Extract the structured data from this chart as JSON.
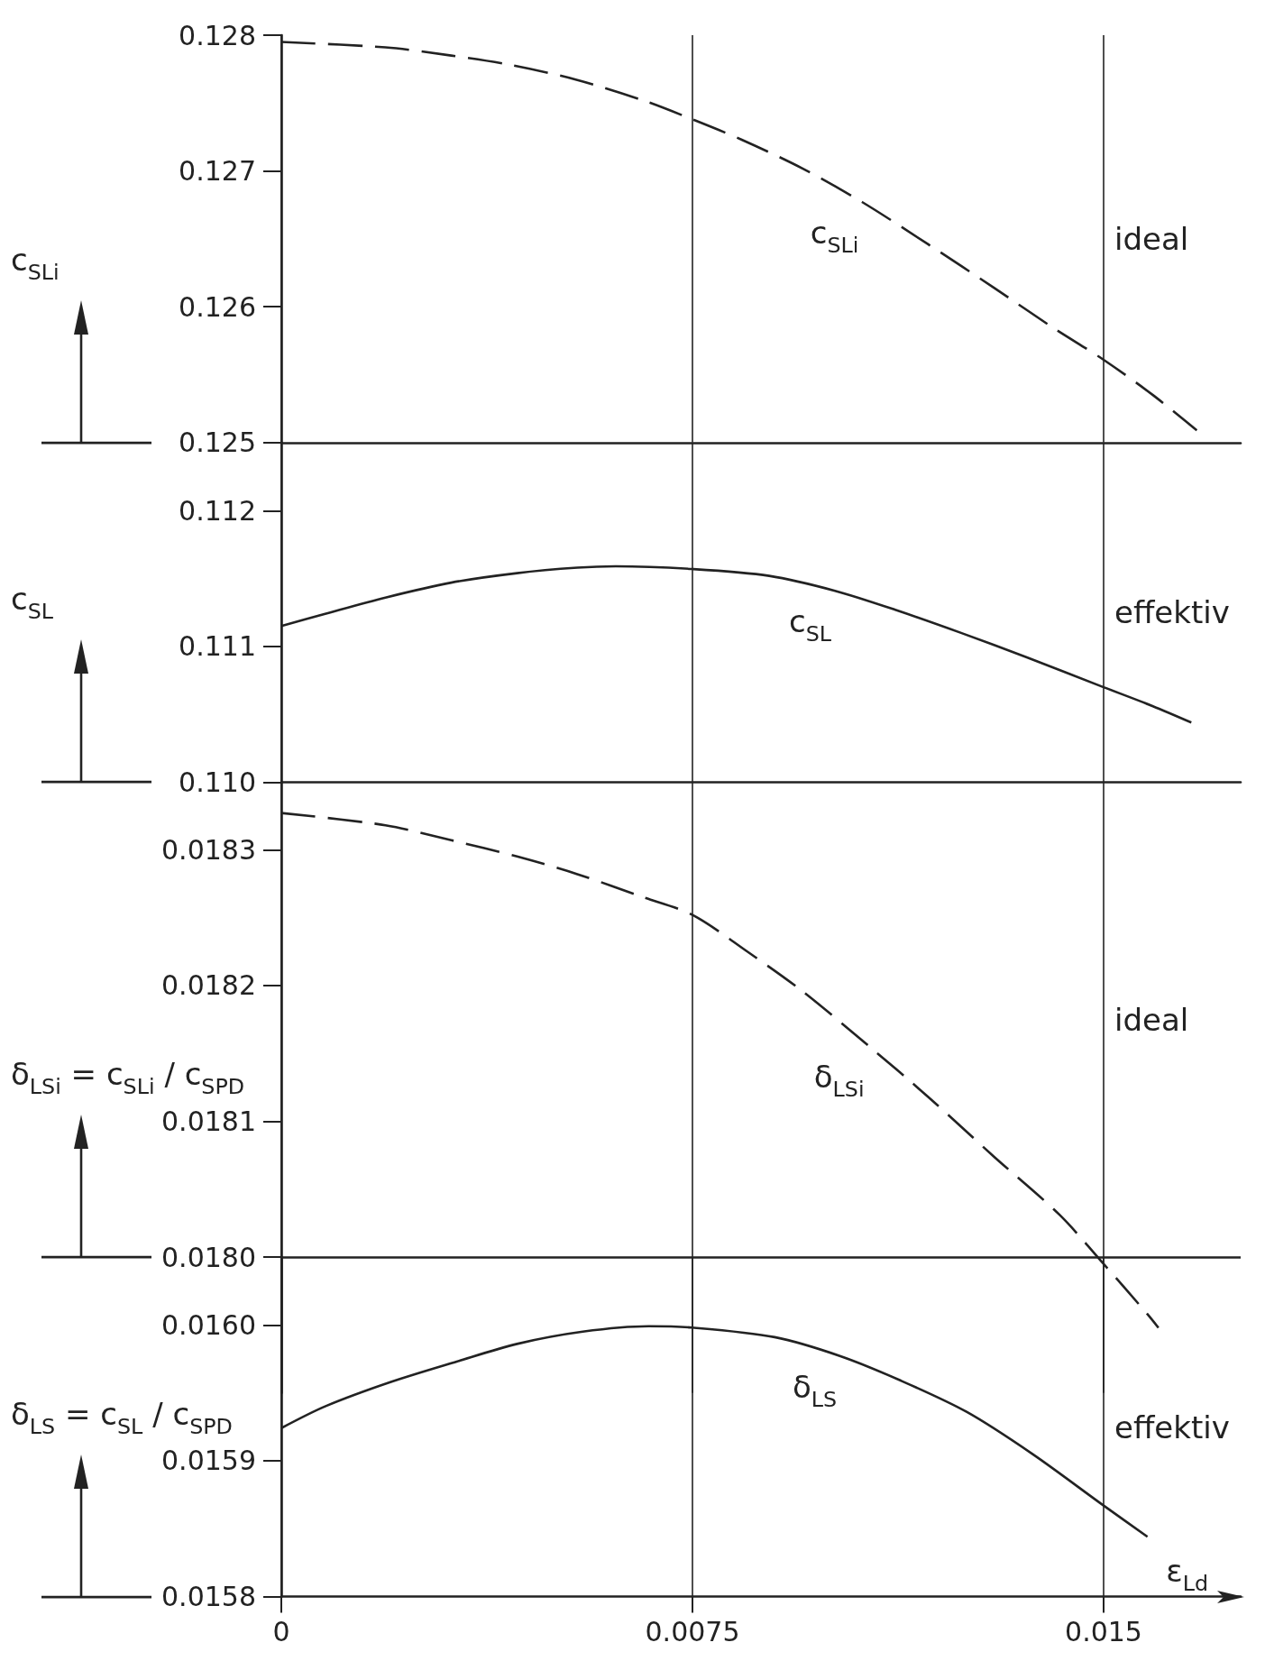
{
  "chart_data": [
    {
      "type": "line",
      "ylabel": "c$_{SLi}$",
      "x": [
        0,
        0.0019,
        0.0031,
        0.0042,
        0.0054,
        0.0066,
        0.0075,
        0.0084,
        0.0095,
        0.0106,
        0.0118,
        0.013,
        0.0141,
        0.015,
        0.0159,
        0.0167
      ],
      "series": [
        {
          "name": "c$_{SLi}$",
          "color": "#222222",
          "values": [
            0.12795,
            0.12791,
            0.12785,
            0.12778,
            0.12767,
            0.12752,
            0.12738,
            0.12723,
            0.12702,
            0.12677,
            0.12646,
            0.12614,
            0.12584,
            0.12561,
            0.12535,
            0.12509
          ]
        }
      ],
      "xlim": [
        0,
        0.0175
      ],
      "xticks": [
        0,
        0.0075,
        0.015
      ],
      "ylim": [
        0.125,
        0.128
      ],
      "yticks": [
        0.125,
        0.126,
        0.127,
        0.128
      ],
      "line_style": "dashed",
      "grid": "x",
      "tick_labels": "y",
      "annotations": [
        "ideal"
      ]
    },
    {
      "type": "line",
      "ylabel": "c$_{SL}$",
      "x": [
        0,
        0.0008,
        0.0019,
        0.0031,
        0.0043,
        0.0054,
        0.0061,
        0.0075,
        0.0089,
        0.0101,
        0.0112,
        0.0124,
        0.0136,
        0.015,
        0.0159,
        0.0166
      ],
      "series": [
        {
          "name": "c$_{SL}$",
          "color": "#222222",
          "values": [
            0.11115,
            0.11124,
            0.11136,
            0.11147,
            0.11154,
            0.11158,
            0.11159,
            0.11157,
            0.11152,
            0.11141,
            0.11127,
            0.1111,
            0.11092,
            0.1107,
            0.11056,
            0.11044
          ]
        }
      ],
      "xlim": [
        0,
        0.0175
      ],
      "xticks": [
        0,
        0.0075,
        0.015
      ],
      "ylim": [
        0.11,
        0.1125
      ],
      "yticks": [
        {
          "value": 0.11,
          "label": "0.110"
        },
        0.111,
        0.112
      ],
      "line_style": "solid",
      "grid": "x",
      "tick_labels": "y",
      "annotations": [
        "effektiv"
      ]
    },
    {
      "type": "line",
      "ylabel": "δ$_{LSi}$ = c$_{SLi}$ / c$_{SPD}$",
      "x": [
        0,
        0.0019,
        0.0031,
        0.0043,
        0.0054,
        0.0066,
        0.0075,
        0.0085,
        0.0095,
        0.0107,
        0.0118,
        0.013,
        0.0142,
        0.015,
        0.0158,
        0.016
      ],
      "series": [
        {
          "name": "δ$_{LSi}$",
          "color": "#222222",
          "values": [
            0.018327,
            0.018318,
            0.018307,
            0.018295,
            0.018282,
            0.018265,
            0.018252,
            0.018225,
            0.018196,
            0.018156,
            0.018118,
            0.018074,
            0.018031,
            0.017995,
            0.017958,
            0.017948
          ]
        }
      ],
      "xlim": [
        0,
        0.0175
      ],
      "xticks": [
        0,
        0.0075,
        0.015
      ],
      "ylim": [
        0.0179,
        0.01835
      ],
      "yticks": [
        {
          "value": 0.018,
          "label": "0.0180"
        },
        0.0181,
        0.0182,
        0.0183
      ],
      "line_style": "dashed",
      "grid": "x",
      "tick_labels": "y",
      "ref_lines": [
        {
          "axis": "y",
          "value": 0.018
        }
      ],
      "annotations": [
        "ideal"
      ]
    },
    {
      "type": "line",
      "ylabel": "δ$_{LS}$ = c$_{SL}$ / c$_{SPD}$",
      "xlabel": "ε$_{Ld}$",
      "x": [
        0,
        0.0008,
        0.002,
        0.0032,
        0.0043,
        0.0055,
        0.0067,
        0.0075,
        0.009,
        0.0102,
        0.0113,
        0.0125,
        0.0137,
        0.015,
        0.0158
      ],
      "series": [
        {
          "name": "δ$_{LS}$",
          "color": "#222222",
          "values": [
            0.015924,
            0.01594,
            0.015958,
            0.015973,
            0.015986,
            0.015995,
            0.015999,
            0.015998,
            0.015991,
            0.015977,
            0.015959,
            0.015936,
            0.015905,
            0.015867,
            0.015844
          ]
        }
      ],
      "xlim": [
        0,
        0.0175
      ],
      "xticks": [
        0,
        0.0075,
        0.015
      ],
      "ylim": [
        0.0158,
        0.01605
      ],
      "yticks": [
        0.0158,
        0.0159,
        {
          "value": 0.016,
          "label": "0.0160"
        }
      ],
      "line_style": "solid",
      "grid": "x",
      "annotations": [
        "effektiv"
      ]
    }
  ]
}
